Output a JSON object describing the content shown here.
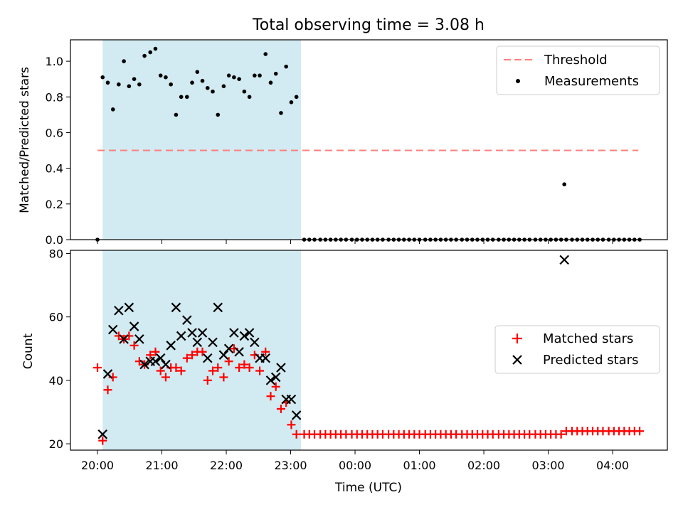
{
  "figure": {
    "suptitle": "Total observing time = 3.08 h"
  },
  "chart_data": [
    {
      "type": "scatter",
      "panel": "top",
      "title": "Total observing time = 3.08 h",
      "xlabel": "",
      "ylabel": "Matched/Predicted stars",
      "ylim": [
        0,
        1.12
      ],
      "yticks": [
        0.0,
        0.2,
        0.4,
        0.6,
        0.8,
        1.0
      ],
      "xtick_hours": [
        0,
        1,
        2,
        3,
        4,
        5,
        6,
        7,
        8
      ],
      "xtick_labels": [
        "20:00",
        "21:00",
        "22:00",
        "23:00",
        "00:00",
        "01:00",
        "02:00",
        "03:00",
        "04:00"
      ],
      "xlim_hours": [
        -0.42,
        8.85
      ],
      "shaded_region_hours": [
        0.08,
        3.16
      ],
      "shaded_color": "#add8e6",
      "grid": false,
      "legend_position": "upper right",
      "threshold": {
        "name": "Threshold",
        "value": 0.5,
        "x_hours": [
          0,
          8.4
        ],
        "color": "#ff7f7f",
        "style": "dashed"
      },
      "series": [
        {
          "name": "Measurements",
          "marker": "dot",
          "color": "#000000",
          "x_hours": [
            0.0,
            0.08,
            0.16,
            0.24,
            0.33,
            0.41,
            0.49,
            0.57,
            0.65,
            0.73,
            0.82,
            0.9,
            0.98,
            1.06,
            1.14,
            1.22,
            1.3,
            1.39,
            1.47,
            1.55,
            1.63,
            1.71,
            1.79,
            1.87,
            1.96,
            2.04,
            2.12,
            2.2,
            2.28,
            2.36,
            2.44,
            2.52,
            2.61,
            2.69,
            2.77,
            2.85,
            2.93,
            3.01,
            3.09,
            3.21,
            3.29,
            3.37,
            3.46,
            3.54,
            3.62,
            3.7,
            3.78,
            3.86,
            3.95,
            4.03,
            4.11,
            4.19,
            4.27,
            4.35,
            4.43,
            4.52,
            4.6,
            4.68,
            4.76,
            4.84,
            4.92,
            5.0,
            5.09,
            5.17,
            5.25,
            5.33,
            5.41,
            5.49,
            5.57,
            5.66,
            5.74,
            5.82,
            5.9,
            5.98,
            6.06,
            6.14,
            6.23,
            6.31,
            6.39,
            6.47,
            6.55,
            6.63,
            6.71,
            6.8,
            6.88,
            6.96,
            7.04,
            7.12,
            7.2,
            7.28,
            7.37,
            7.45,
            7.53,
            7.61,
            7.69,
            7.77,
            7.85,
            7.94,
            8.02,
            8.1,
            8.18,
            8.26,
            8.34,
            8.42
          ],
          "y": [
            0.0,
            0.91,
            0.88,
            0.73,
            0.87,
            1.0,
            0.86,
            0.9,
            0.87,
            1.03,
            1.05,
            1.07,
            0.92,
            0.91,
            0.87,
            0.7,
            0.8,
            0.8,
            0.88,
            0.94,
            0.89,
            0.85,
            0.83,
            0.7,
            0.86,
            0.92,
            0.91,
            0.9,
            0.83,
            0.8,
            0.92,
            0.92,
            1.04,
            0.88,
            0.93,
            0.71,
            0.97,
            0.77,
            0.8,
            0.0,
            0.0,
            0.0,
            0.0,
            0.0,
            0.0,
            0.0,
            0.0,
            0.0,
            0.0,
            0.0,
            0.0,
            0.0,
            0.0,
            0.0,
            0.0,
            0.0,
            0.0,
            0.0,
            0.0,
            0.0,
            0.0,
            0.0,
            0.0,
            0.0,
            0.0,
            0.0,
            0.0,
            0.0,
            0.0,
            0.0,
            0.0,
            0.0,
            0.0,
            0.0,
            0.0,
            0.0,
            0.0,
            0.0,
            0.0,
            0.0,
            0.0,
            0.0,
            0.0,
            0.0,
            0.0,
            0.0,
            0.0,
            0.0,
            0.0,
            0.0,
            0.0,
            0.0,
            0.0,
            0.0,
            0.0,
            0.0,
            0.0,
            0.0,
            0.0,
            0.0,
            0.0,
            0.0,
            0.0,
            0.0
          ]
        },
        {
          "name": "",
          "marker": "dot",
          "color": "#000000",
          "x_hours": [
            7.25
          ],
          "y": [
            0.31
          ]
        }
      ]
    },
    {
      "type": "scatter",
      "panel": "bottom",
      "title": "",
      "xlabel": "Time (UTC)",
      "ylabel": "Count",
      "ylim": [
        18,
        81
      ],
      "yticks": [
        20,
        40,
        60,
        80
      ],
      "xtick_hours": [
        0,
        1,
        2,
        3,
        4,
        5,
        6,
        7,
        8
      ],
      "xtick_labels": [
        "20:00",
        "21:00",
        "22:00",
        "23:00",
        "00:00",
        "01:00",
        "02:00",
        "03:00",
        "04:00"
      ],
      "xlim_hours": [
        -0.42,
        8.85
      ],
      "shaded_region_hours": [
        0.08,
        3.16
      ],
      "shaded_color": "#add8e6",
      "grid": false,
      "legend_position": "center right",
      "series": [
        {
          "name": "Matched stars",
          "marker": "plus",
          "color": "#ff0000",
          "x_hours": [
            0.0,
            0.08,
            0.16,
            0.24,
            0.33,
            0.41,
            0.49,
            0.57,
            0.65,
            0.73,
            0.82,
            0.9,
            0.98,
            1.06,
            1.14,
            1.22,
            1.3,
            1.39,
            1.47,
            1.55,
            1.63,
            1.71,
            1.79,
            1.87,
            1.96,
            2.04,
            2.12,
            2.2,
            2.28,
            2.36,
            2.44,
            2.52,
            2.61,
            2.69,
            2.77,
            2.85,
            2.93,
            3.01,
            3.09,
            3.21,
            3.29,
            3.37,
            3.46,
            3.54,
            3.62,
            3.7,
            3.78,
            3.86,
            3.95,
            4.03,
            4.11,
            4.19,
            4.27,
            4.35,
            4.43,
            4.52,
            4.6,
            4.68,
            4.76,
            4.84,
            4.92,
            5.0,
            5.09,
            5.17,
            5.25,
            5.33,
            5.41,
            5.49,
            5.57,
            5.66,
            5.74,
            5.82,
            5.9,
            5.98,
            6.06,
            6.14,
            6.23,
            6.31,
            6.39,
            6.47,
            6.55,
            6.63,
            6.71,
            6.8,
            6.88,
            6.96,
            7.04,
            7.12,
            7.2,
            7.28,
            7.37,
            7.45,
            7.53,
            7.61,
            7.69,
            7.77,
            7.85,
            7.94,
            8.02,
            8.1,
            8.18,
            8.26,
            8.34,
            8.42
          ],
          "y": [
            44,
            21,
            37,
            41,
            54,
            53,
            54,
            51,
            46,
            45,
            48,
            49,
            43,
            41,
            44,
            44,
            43,
            47,
            48,
            49,
            49,
            40,
            43,
            44,
            41,
            46,
            50,
            44,
            45,
            44,
            48,
            43,
            49,
            35,
            38,
            31,
            33,
            26,
            23,
            23,
            23,
            23,
            23,
            23,
            23,
            23,
            23,
            23,
            23,
            23,
            23,
            23,
            23,
            23,
            23,
            23,
            23,
            23,
            23,
            23,
            23,
            23,
            23,
            23,
            23,
            23,
            23,
            23,
            23,
            23,
            23,
            23,
            23,
            23,
            23,
            23,
            23,
            23,
            23,
            23,
            23,
            23,
            23,
            23,
            23,
            23,
            23,
            23,
            23,
            24,
            24,
            24,
            24,
            24,
            24,
            24,
            24,
            24,
            24,
            24,
            24,
            24,
            24,
            24
          ]
        },
        {
          "name": "Predicted stars",
          "marker": "x",
          "color": "#000000",
          "x_hours": [
            0.08,
            0.16,
            0.24,
            0.33,
            0.41,
            0.49,
            0.57,
            0.65,
            0.73,
            0.82,
            0.9,
            0.98,
            1.06,
            1.14,
            1.22,
            1.3,
            1.39,
            1.47,
            1.55,
            1.63,
            1.71,
            1.79,
            1.87,
            1.96,
            2.04,
            2.12,
            2.2,
            2.28,
            2.36,
            2.44,
            2.52,
            2.61,
            2.69,
            2.77,
            2.85,
            2.93,
            3.01,
            3.09,
            7.25
          ],
          "y": [
            23,
            42,
            56,
            62,
            53,
            63,
            57,
            53,
            45,
            46,
            46,
            47,
            45,
            51,
            63,
            54,
            59,
            55,
            52,
            55,
            47,
            52,
            63,
            48,
            50,
            55,
            49,
            54,
            55,
            52,
            47,
            47,
            40,
            41,
            44,
            34,
            34,
            29,
            78
          ]
        }
      ]
    }
  ]
}
